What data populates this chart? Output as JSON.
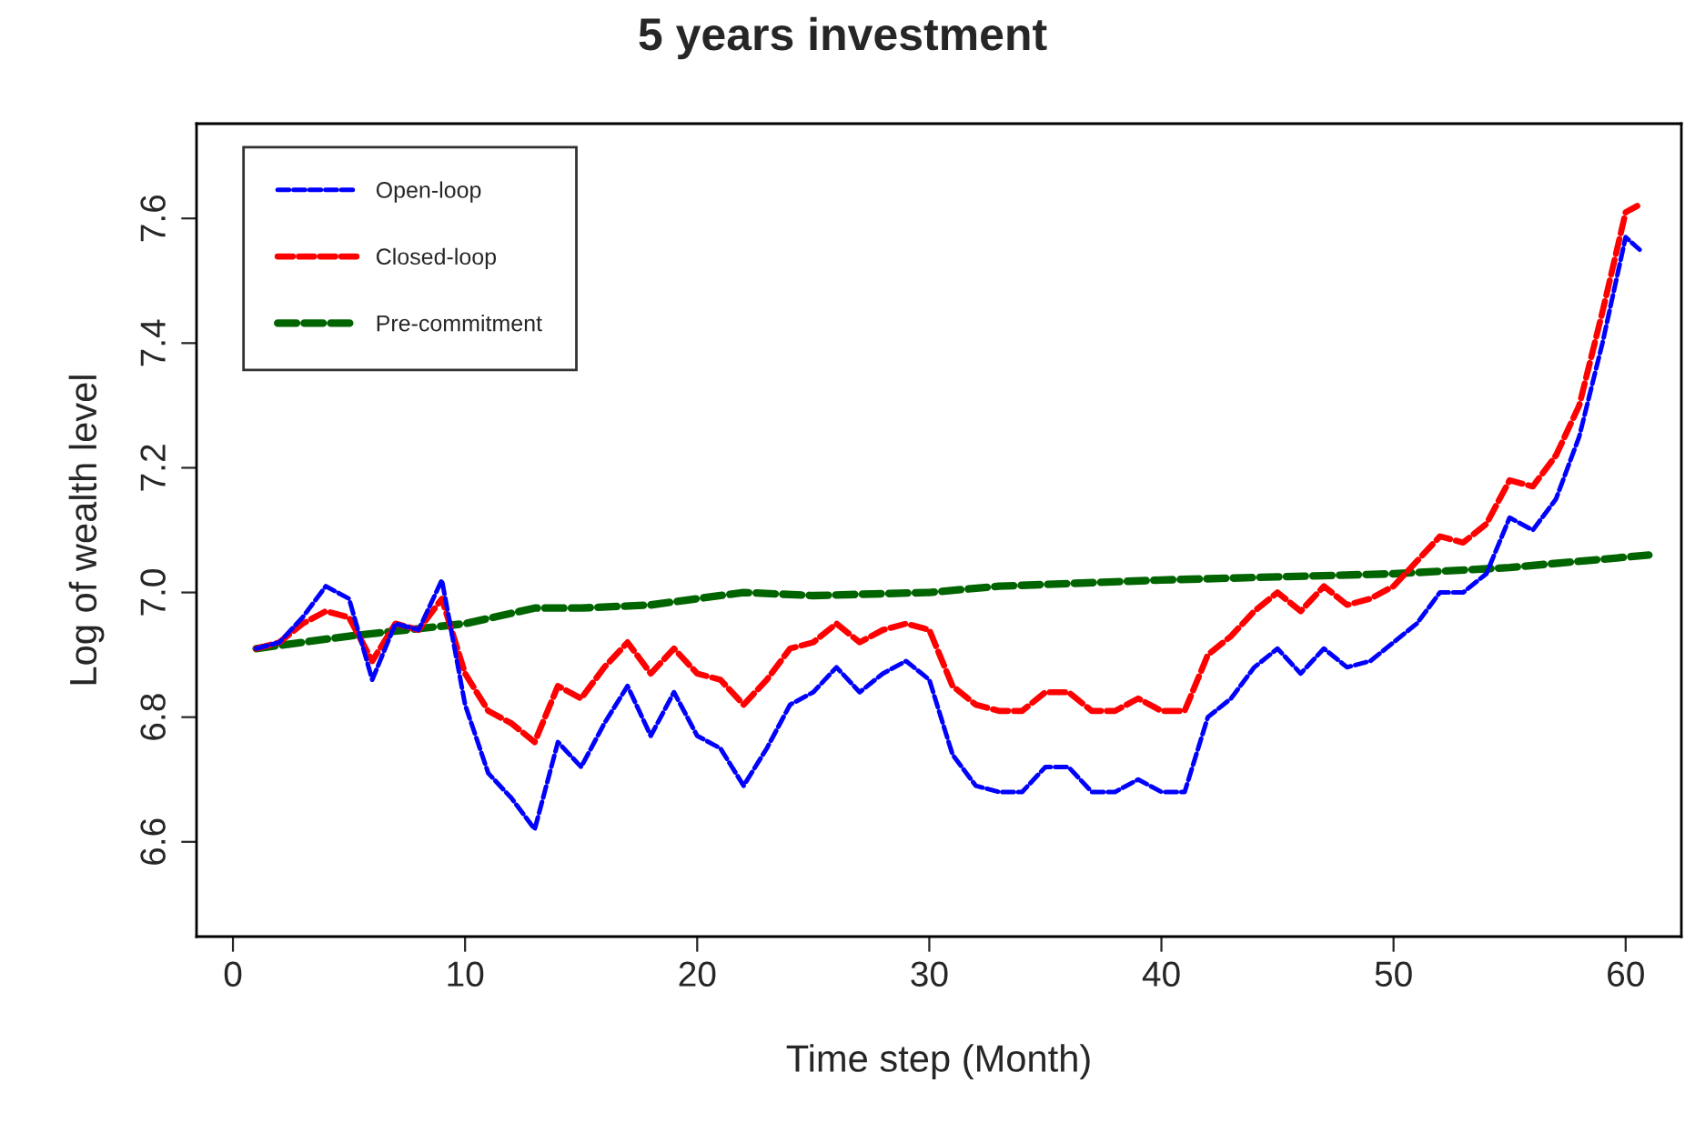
{
  "chart_data": {
    "type": "line",
    "title": "5 years investment",
    "xlabel": "Time step (Month)",
    "ylabel": "Log of wealth level",
    "xlim": [
      -1.57,
      62.4
    ],
    "ylim": [
      6.448,
      7.752
    ],
    "xticks": [
      0,
      10,
      20,
      30,
      40,
      50,
      60
    ],
    "yticks": [
      6.6,
      6.8,
      {
        "value": 7.0,
        "label": "7.0"
      },
      7.2,
      7.4,
      7.6
    ],
    "grid": false,
    "legend": "top left",
    "marker": "none",
    "line_style": "dashed",
    "series": [
      {
        "name": "Open-loop",
        "color": "#0000ff",
        "x": [
          1,
          2,
          3,
          4,
          5,
          6,
          7,
          8,
          9,
          10,
          11,
          12,
          13,
          14,
          15,
          16,
          17,
          18,
          19,
          20,
          21,
          22,
          23,
          24,
          25,
          26,
          27,
          28,
          29,
          30,
          31,
          32,
          33,
          34,
          35,
          36,
          37,
          38,
          39,
          40,
          41,
          42,
          43,
          44,
          45,
          46,
          47,
          48,
          49,
          50,
          51,
          52,
          53,
          54,
          55,
          56,
          57,
          58,
          59,
          60,
          60.6
        ],
        "values": [
          6.91,
          6.92,
          6.96,
          7.01,
          6.99,
          6.86,
          6.95,
          6.94,
          7.02,
          6.82,
          6.71,
          6.67,
          6.62,
          6.76,
          6.72,
          6.79,
          6.85,
          6.77,
          6.84,
          6.77,
          6.75,
          6.69,
          6.75,
          6.82,
          6.84,
          6.88,
          6.84,
          6.87,
          6.89,
          6.86,
          6.74,
          6.69,
          6.68,
          6.68,
          6.72,
          6.72,
          6.68,
          6.68,
          6.7,
          6.68,
          6.68,
          6.8,
          6.83,
          6.88,
          6.91,
          6.87,
          6.91,
          6.88,
          6.89,
          6.92,
          6.95,
          7.0,
          7.0,
          7.03,
          7.12,
          7.1,
          7.15,
          7.25,
          7.4,
          7.57,
          7.55
        ]
      },
      {
        "name": "Closed-loop",
        "color": "#ff0000",
        "x": [
          1,
          2,
          3,
          4,
          5,
          6,
          7,
          8,
          9,
          10,
          11,
          12,
          13,
          14,
          15,
          16,
          17,
          18,
          19,
          20,
          21,
          22,
          23,
          24,
          25,
          26,
          27,
          28,
          29,
          30,
          31,
          32,
          33,
          34,
          35,
          36,
          37,
          38,
          39,
          40,
          41,
          42,
          43,
          44,
          45,
          46,
          47,
          48,
          49,
          50,
          51,
          52,
          53,
          54,
          55,
          56,
          57,
          58,
          59,
          60,
          60.5
        ],
        "values": [
          6.91,
          6.92,
          6.95,
          6.97,
          6.96,
          6.89,
          6.95,
          6.94,
          6.99,
          6.87,
          6.81,
          6.79,
          6.76,
          6.85,
          6.83,
          6.88,
          6.92,
          6.87,
          6.91,
          6.87,
          6.86,
          6.82,
          6.86,
          6.91,
          6.92,
          6.95,
          6.92,
          6.94,
          6.95,
          6.94,
          6.85,
          6.82,
          6.81,
          6.81,
          6.84,
          6.84,
          6.81,
          6.81,
          6.83,
          6.81,
          6.81,
          6.9,
          6.93,
          6.97,
          7.0,
          6.97,
          7.01,
          6.98,
          6.99,
          7.01,
          7.05,
          7.09,
          7.08,
          7.11,
          7.18,
          7.17,
          7.22,
          7.3,
          7.45,
          7.61,
          7.62
        ]
      },
      {
        "name": "Pre-commitment",
        "color": "#006400",
        "x": [
          1,
          5,
          10,
          13,
          15,
          18,
          22,
          25,
          30,
          33,
          40,
          45,
          50,
          55,
          61
        ],
        "values": [
          6.91,
          6.93,
          6.95,
          6.975,
          6.975,
          6.98,
          7.0,
          6.995,
          7.0,
          7.01,
          7.02,
          7.025,
          7.03,
          7.04,
          7.06
        ]
      }
    ]
  }
}
